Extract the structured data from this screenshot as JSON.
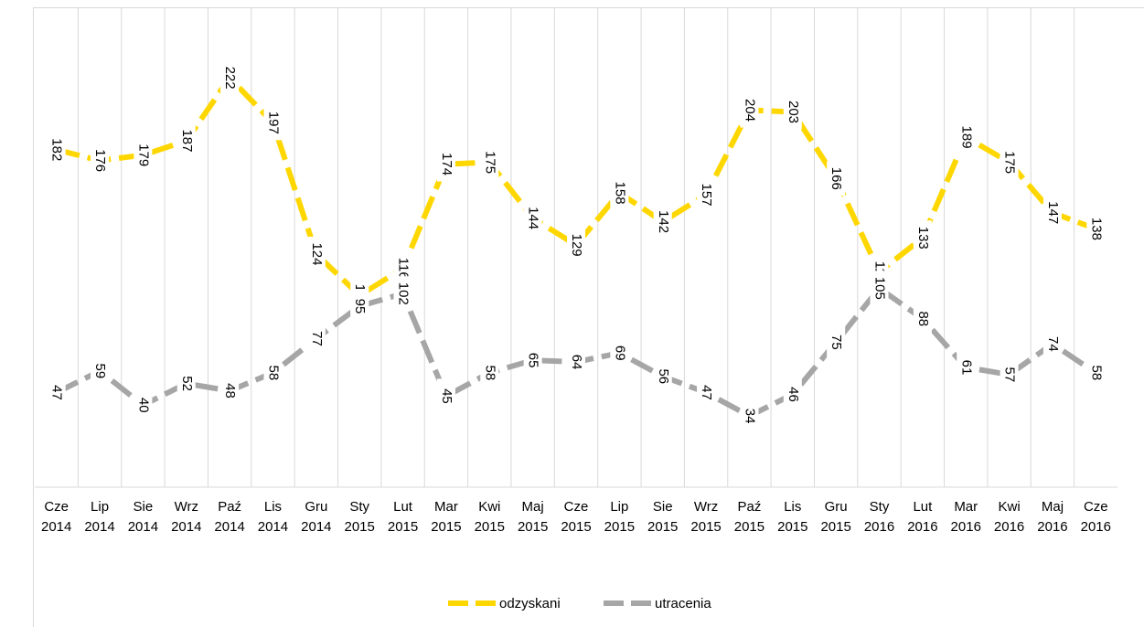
{
  "chart_data": {
    "type": "line",
    "categories": [
      "Cze 2014",
      "Lip 2014",
      "Sie 2014",
      "Wrz 2014",
      "Paź 2014",
      "Lis 2014",
      "Gru 2014",
      "Sty 2015",
      "Lut 2015",
      "Mar 2015",
      "Kwi 2015",
      "Maj 2015",
      "Cze 2015",
      "Lip 2015",
      "Sie 2015",
      "Wrz 2015",
      "Paź 2015",
      "Lis 2015",
      "Gru 2015",
      "Sty 2016",
      "Lut 2016",
      "Mar 2016",
      "Kwi 2016",
      "Maj 2016",
      "Cze 2016"
    ],
    "series": [
      {
        "name": "odzyskani",
        "color": "#ffd700",
        "values": [
          182,
          176,
          179,
          187,
          222,
          197,
          124,
          101,
          116,
          174,
          175,
          144,
          129,
          158,
          142,
          157,
          204,
          203,
          166,
          114,
          133,
          189,
          175,
          147,
          138
        ]
      },
      {
        "name": "utracenia",
        "color": "#a6a6a6",
        "values": [
          47,
          59,
          40,
          52,
          48,
          58,
          77,
          95,
          102,
          45,
          58,
          65,
          64,
          69,
          56,
          47,
          34,
          46,
          75,
          105,
          88,
          61,
          57,
          74,
          58
        ]
      }
    ],
    "ylim": [
      0,
      250
    ],
    "grid": true,
    "legend": "bottom"
  }
}
